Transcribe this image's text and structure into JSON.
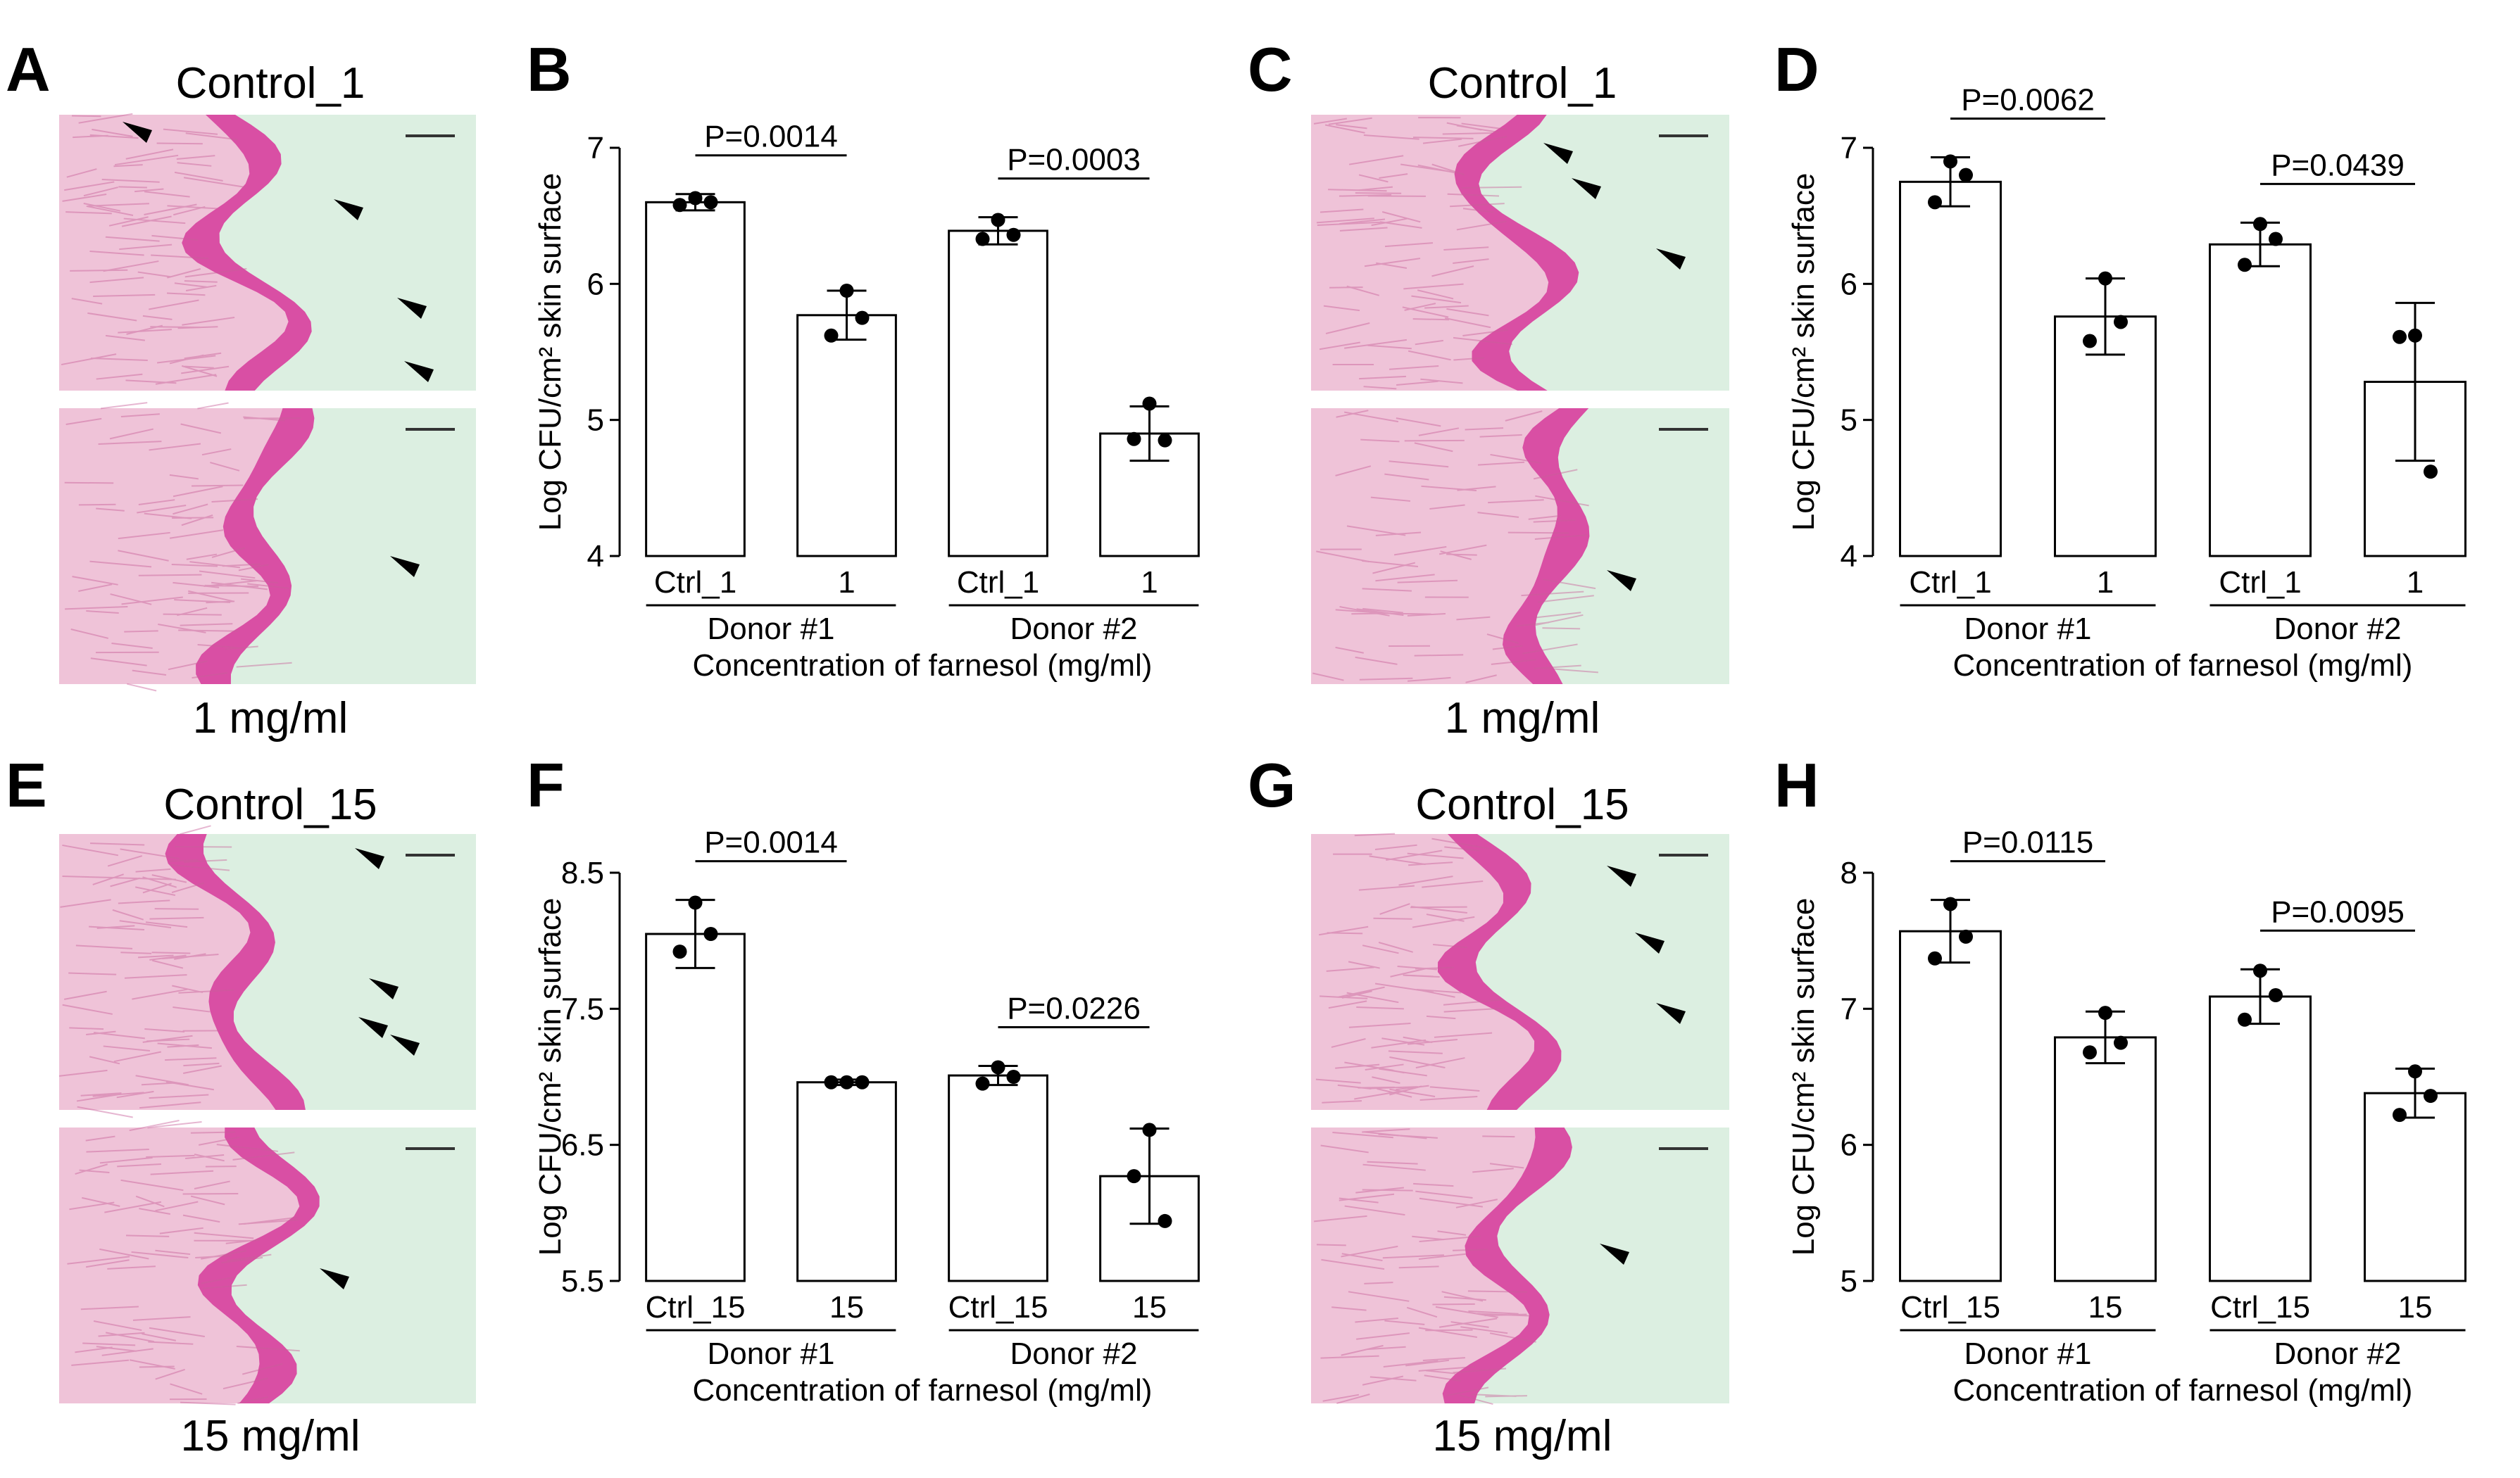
{
  "micrographs": [
    {
      "panel": "A",
      "title": "Control_1",
      "caption": "1 mg/ml"
    },
    {
      "panel": "C",
      "title": "Control_1",
      "caption": "1 mg/ml"
    },
    {
      "panel": "E",
      "title": "Control_15",
      "caption": "15 mg/ml"
    },
    {
      "panel": "G",
      "title": "Control_15",
      "caption": "15 mg/ml"
    }
  ],
  "colors": {
    "tissue": "#d94fa4",
    "dermis": "#efc3d8",
    "background": "#dcefe1",
    "bar_fill": "#ffffff",
    "stroke": "#000000"
  },
  "chart_data": [
    {
      "panel": "B",
      "type": "bar",
      "ylabel": "Log CFU/cm² skin surface",
      "xlabel": "Concentration of farnesol (mg/ml)",
      "ylim": [
        4,
        7
      ],
      "yticks": [
        "4",
        "5",
        "6",
        "7"
      ],
      "categories": [
        "Ctrl_1",
        "1",
        "Ctrl_1",
        "1"
      ],
      "groups": [
        "Donor #1",
        "Donor #2"
      ],
      "values": [
        6.6,
        5.77,
        6.39,
        4.9
      ],
      "errors": [
        0.06,
        0.18,
        0.1,
        0.2
      ],
      "points": [
        [
          6.63,
          6.58,
          6.6
        ],
        [
          5.95,
          5.62,
          5.75
        ],
        [
          6.47,
          6.33,
          6.36
        ],
        [
          5.12,
          4.86,
          4.85
        ]
      ],
      "comparisons": [
        {
          "from": 0,
          "to": 1,
          "label": "P=0.0014"
        },
        {
          "from": 2,
          "to": 3,
          "label": "P=0.0003"
        }
      ]
    },
    {
      "panel": "D",
      "type": "bar",
      "ylabel": "Log CFU/cm² skin surface",
      "xlabel": "Concentration of farnesol (mg/ml)",
      "ylim": [
        4,
        7
      ],
      "yticks": [
        "4",
        "5",
        "6",
        "7"
      ],
      "categories": [
        "Ctrl_1",
        "1",
        "Ctrl_1",
        "1"
      ],
      "groups": [
        "Donor #1",
        "Donor #2"
      ],
      "values": [
        6.75,
        5.76,
        6.29,
        5.28
      ],
      "errors": [
        0.18,
        0.28,
        0.16,
        0.58
      ],
      "points": [
        [
          6.9,
          6.6,
          6.8
        ],
        [
          6.04,
          5.58,
          5.72
        ],
        [
          6.44,
          6.14,
          6.33
        ],
        [
          5.62,
          5.61,
          4.62
        ]
      ],
      "comparisons": [
        {
          "from": 0,
          "to": 1,
          "label": "P=0.0062"
        },
        {
          "from": 2,
          "to": 3,
          "label": "P=0.0439"
        }
      ]
    },
    {
      "panel": "F",
      "type": "bar",
      "ylabel": "Log CFU/cm² skin surface",
      "xlabel": "Concentration of farnesol (mg/ml)",
      "ylim": [
        5.5,
        8.5
      ],
      "yticks": [
        "5.5",
        "6.5",
        "7.5",
        "8.5"
      ],
      "categories": [
        "Ctrl_15",
        "15",
        "Ctrl_15",
        "15"
      ],
      "groups": [
        "Donor #1",
        "Donor #2"
      ],
      "values": [
        8.05,
        6.96,
        7.01,
        6.27
      ],
      "errors": [
        0.25,
        0.02,
        0.07,
        0.35
      ],
      "points": [
        [
          8.28,
          7.92,
          8.05
        ],
        [
          6.96,
          6.96,
          6.96
        ],
        [
          7.07,
          6.95,
          7.0
        ],
        [
          6.61,
          6.27,
          5.94
        ]
      ],
      "comparisons": [
        {
          "from": 0,
          "to": 1,
          "label": "P=0.0014"
        },
        {
          "from": 2,
          "to": 3,
          "label": "P=0.0226"
        }
      ]
    },
    {
      "panel": "H",
      "type": "bar",
      "ylabel": "Log CFU/cm² skin surface",
      "xlabel": "Concentration of farnesol (mg/ml)",
      "ylim": [
        5,
        8
      ],
      "yticks": [
        "5",
        "6",
        "7",
        "8"
      ],
      "categories": [
        "Ctrl_15",
        "15",
        "Ctrl_15",
        "15"
      ],
      "groups": [
        "Donor #1",
        "Donor #2"
      ],
      "values": [
        7.57,
        6.79,
        7.09,
        6.38
      ],
      "errors": [
        0.23,
        0.19,
        0.2,
        0.18
      ],
      "points": [
        [
          7.77,
          7.37,
          7.53
        ],
        [
          6.97,
          6.68,
          6.75
        ],
        [
          7.28,
          6.92,
          7.1
        ],
        [
          6.54,
          6.22,
          6.36
        ]
      ],
      "comparisons": [
        {
          "from": 0,
          "to": 1,
          "label": "P=0.0115"
        },
        {
          "from": 2,
          "to": 3,
          "label": "P=0.0095"
        }
      ]
    }
  ]
}
